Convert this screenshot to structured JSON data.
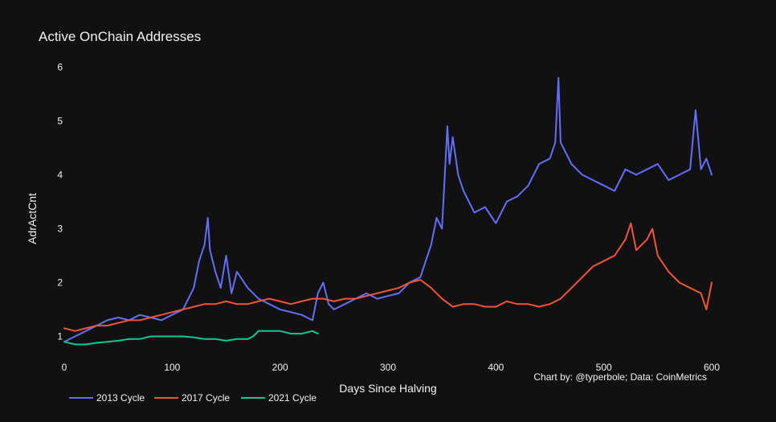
{
  "chart_data": {
    "type": "line",
    "title": "Active OnChain Addresses",
    "xlabel": "Days Since Halving",
    "ylabel": "AdrActCnt",
    "credit": "Chart by: @typerbole; Data: CoinMetrics",
    "xlim": [
      0,
      600
    ],
    "ylim": [
      0.5,
      6.2
    ],
    "xticks": [
      0,
      100,
      200,
      300,
      400,
      500,
      600
    ],
    "yticks": [
      1,
      2,
      3,
      4,
      5,
      6
    ],
    "grid": false,
    "legend_position": "bottom-left",
    "series": [
      {
        "name": "2013 Cycle",
        "color": "#636efa",
        "x": [
          0,
          10,
          20,
          30,
          40,
          50,
          60,
          70,
          80,
          90,
          100,
          110,
          115,
          120,
          125,
          130,
          133,
          135,
          140,
          145,
          150,
          155,
          160,
          170,
          180,
          190,
          200,
          210,
          220,
          230,
          235,
          240,
          245,
          250,
          260,
          270,
          280,
          290,
          300,
          310,
          320,
          330,
          340,
          345,
          350,
          355,
          357,
          360,
          365,
          370,
          380,
          390,
          400,
          410,
          420,
          430,
          440,
          450,
          455,
          458,
          460,
          470,
          480,
          490,
          500,
          510,
          520,
          530,
          540,
          550,
          560,
          570,
          580,
          585,
          590,
          595,
          600
        ],
        "y": [
          0.9,
          1.0,
          1.1,
          1.2,
          1.3,
          1.35,
          1.3,
          1.4,
          1.35,
          1.3,
          1.4,
          1.5,
          1.7,
          1.9,
          2.4,
          2.7,
          3.2,
          2.6,
          2.2,
          1.9,
          2.5,
          1.8,
          2.2,
          1.9,
          1.7,
          1.6,
          1.5,
          1.45,
          1.4,
          1.3,
          1.8,
          2.0,
          1.6,
          1.5,
          1.6,
          1.7,
          1.8,
          1.7,
          1.75,
          1.8,
          2.0,
          2.1,
          2.7,
          3.2,
          3.0,
          4.9,
          4.2,
          4.7,
          4.0,
          3.7,
          3.3,
          3.4,
          3.1,
          3.5,
          3.6,
          3.8,
          4.2,
          4.3,
          4.6,
          5.8,
          4.6,
          4.2,
          4.0,
          3.9,
          3.8,
          3.7,
          4.1,
          4.0,
          4.1,
          4.2,
          3.9,
          4.0,
          4.1,
          5.2,
          4.1,
          4.3,
          4.0
        ]
      },
      {
        "name": "2017 Cycle",
        "color": "#ef553b",
        "x": [
          0,
          10,
          20,
          30,
          40,
          50,
          60,
          70,
          80,
          90,
          100,
          110,
          120,
          130,
          140,
          150,
          160,
          170,
          180,
          190,
          200,
          210,
          220,
          230,
          240,
          250,
          260,
          270,
          280,
          290,
          300,
          310,
          320,
          330,
          340,
          350,
          360,
          370,
          380,
          390,
          400,
          410,
          420,
          430,
          440,
          450,
          460,
          470,
          480,
          490,
          500,
          510,
          520,
          525,
          530,
          540,
          545,
          550,
          560,
          570,
          580,
          590,
          595,
          600
        ],
        "y": [
          1.15,
          1.1,
          1.15,
          1.2,
          1.2,
          1.25,
          1.3,
          1.3,
          1.35,
          1.4,
          1.45,
          1.5,
          1.55,
          1.6,
          1.6,
          1.65,
          1.6,
          1.6,
          1.65,
          1.7,
          1.65,
          1.6,
          1.65,
          1.7,
          1.7,
          1.65,
          1.7,
          1.7,
          1.75,
          1.8,
          1.85,
          1.9,
          2.0,
          2.05,
          1.9,
          1.7,
          1.55,
          1.6,
          1.6,
          1.55,
          1.55,
          1.65,
          1.6,
          1.6,
          1.55,
          1.6,
          1.7,
          1.9,
          2.1,
          2.3,
          2.4,
          2.5,
          2.8,
          3.1,
          2.6,
          2.8,
          3.0,
          2.5,
          2.2,
          2.0,
          1.9,
          1.8,
          1.5,
          2.0
        ]
      },
      {
        "name": "2021 Cycle",
        "color": "#00cc96",
        "x": [
          0,
          10,
          20,
          30,
          40,
          50,
          60,
          70,
          80,
          90,
          100,
          110,
          120,
          130,
          140,
          150,
          160,
          170,
          175,
          180,
          190,
          200,
          210,
          220,
          230,
          235
        ],
        "y": [
          0.9,
          0.85,
          0.85,
          0.88,
          0.9,
          0.92,
          0.95,
          0.95,
          1.0,
          1.0,
          1.0,
          1.0,
          0.98,
          0.95,
          0.95,
          0.92,
          0.95,
          0.95,
          1.0,
          1.1,
          1.1,
          1.1,
          1.05,
          1.05,
          1.1,
          1.05
        ]
      }
    ]
  }
}
